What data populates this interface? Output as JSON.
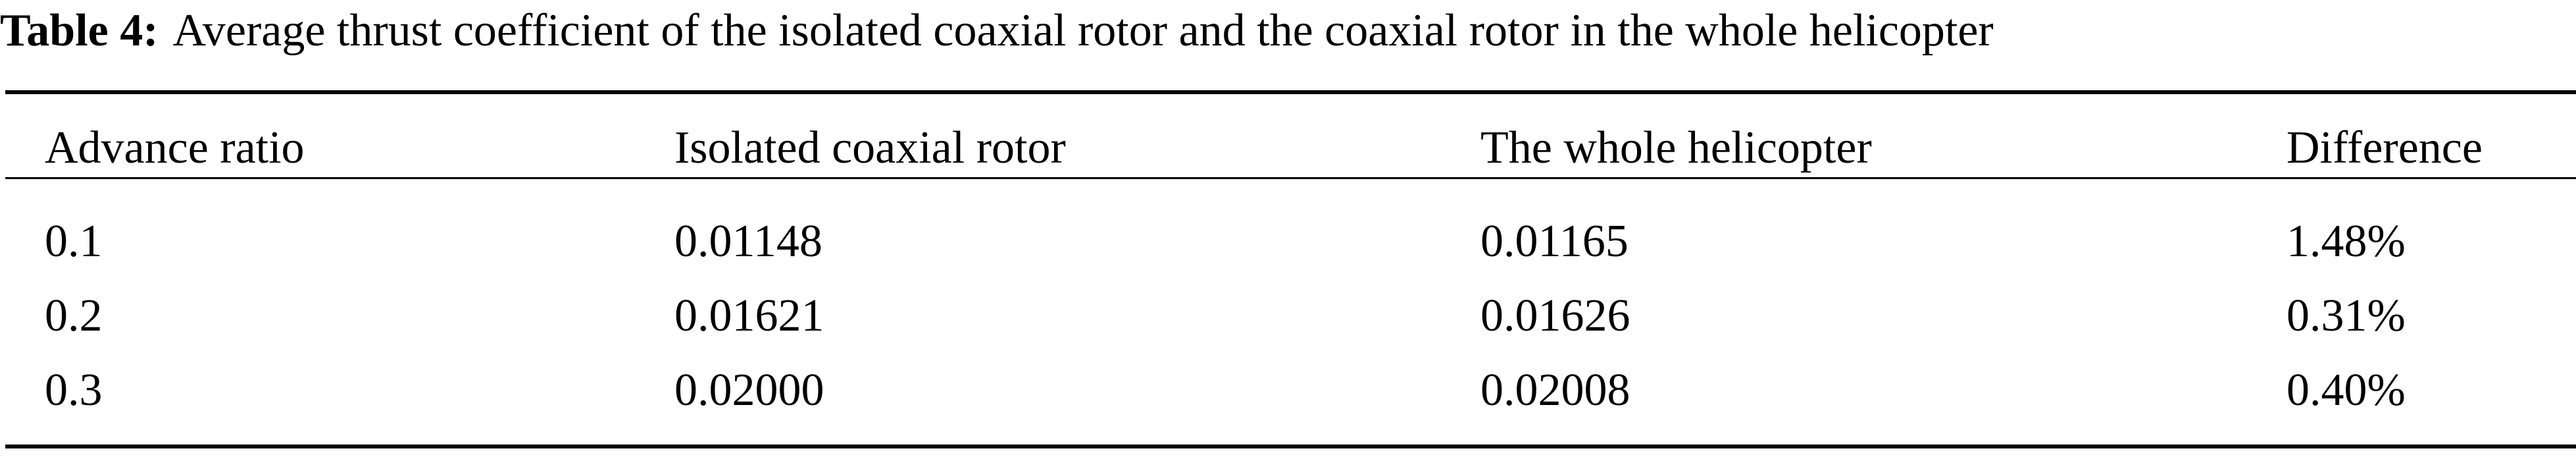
{
  "caption": {
    "label": "Table 4:",
    "text": "Average thrust coefficient of the isolated coaxial rotor and the coaxial rotor in the whole helicopter"
  },
  "table": {
    "headers": [
      "Advance ratio",
      "Isolated coaxial rotor",
      "The whole helicopter",
      "Difference"
    ],
    "rows": [
      [
        "0.1",
        "0.01148",
        "0.01165",
        "1.48%"
      ],
      [
        "0.2",
        "0.01621",
        "0.01626",
        "0.31%"
      ],
      [
        "0.3",
        "0.02000",
        "0.02008",
        "0.40%"
      ]
    ]
  }
}
